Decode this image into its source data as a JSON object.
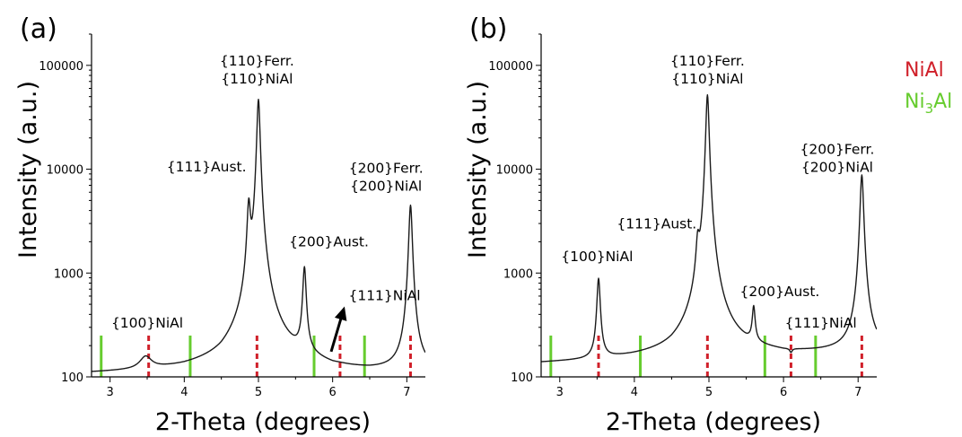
{
  "colors": {
    "nial": "#d0202a",
    "ni3al": "#66cc2e",
    "trace": "#1a1a1a"
  },
  "legend": [
    {
      "key": "nial",
      "label": "NiAl"
    },
    {
      "key": "ni3al",
      "label": "Ni3Al",
      "base": "Ni",
      "sub": "3",
      "tail": "Al"
    }
  ],
  "chart_data": [
    {
      "panel": "(a)",
      "type": "line",
      "xlabel": "2-Theta (degrees)",
      "ylabel": "Intensity (a.u.)",
      "xlim": [
        2.75,
        7.25
      ],
      "ylim": [
        100,
        200000
      ],
      "yscale": "log",
      "xticks": [
        3,
        4,
        5,
        6,
        7
      ],
      "xtick_labels": [
        "3",
        "4",
        "5",
        "6",
        "7"
      ],
      "yticks": [
        100,
        1000,
        10000,
        100000
      ],
      "ytick_labels": [
        "100",
        "1000",
        "10000",
        "100000"
      ],
      "baseline": [
        [
          2.75,
          108
        ],
        [
          3.3,
          111
        ],
        [
          4.0,
          118
        ],
        [
          4.5,
          130
        ],
        [
          4.8,
          160
        ],
        [
          5.1,
          175
        ],
        [
          5.5,
          140
        ],
        [
          6.0,
          118
        ],
        [
          6.5,
          113
        ],
        [
          7.25,
          115
        ]
      ],
      "peaks": [
        {
          "x": 3.48,
          "height": 150,
          "width": 0.09
        },
        {
          "x": 4.87,
          "height": 4200,
          "width": 0.022
        },
        {
          "x": 5.0,
          "height": 47000,
          "width": 0.02
        },
        {
          "x": 5.62,
          "height": 1100,
          "width": 0.022
        },
        {
          "x": 6.1,
          "height": 118,
          "width": 0.08
        },
        {
          "x": 7.05,
          "height": 4500,
          "width": 0.022
        }
      ],
      "reference_lines": {
        "nial": [
          3.52,
          4.98,
          6.1,
          7.05
        ],
        "ni3al": [
          2.88,
          4.08,
          5.75,
          6.43
        ]
      },
      "annotations": [
        {
          "lines": [
            "{110}Ferr.",
            "{110}NiAl"
          ],
          "x": 4.98,
          "y": 100000
        },
        {
          "lines": [
            "{111}Aust."
          ],
          "x": 4.3,
          "y": 9500
        },
        {
          "lines": [
            "{200}Aust."
          ],
          "x": 5.95,
          "y": 1800
        },
        {
          "lines": [
            "{200}Ferr.",
            "{200}NiAl"
          ],
          "x": 6.72,
          "y": 9200
        },
        {
          "lines": [
            "{111}NiAl"
          ],
          "x": 6.7,
          "y": 550
        },
        {
          "lines": [
            "{100}NiAl"
          ],
          "x": 3.5,
          "y": 300
        }
      ],
      "arrow": {
        "from": [
          5.98,
          175
        ],
        "to": [
          6.15,
          450
        ]
      }
    },
    {
      "panel": "(b)",
      "type": "line",
      "xlabel": "2-Theta (degrees)",
      "ylabel": "Intensity (a.u.)",
      "xlim": [
        2.75,
        7.25
      ],
      "ylim": [
        100,
        200000
      ],
      "yscale": "log",
      "xticks": [
        3,
        4,
        5,
        6,
        7
      ],
      "xtick_labels": [
        "3",
        "4",
        "5",
        "6",
        "7"
      ],
      "yticks": [
        100,
        1000,
        10000,
        100000
      ],
      "ytick_labels": [
        "100",
        "1000",
        "10000",
        "100000"
      ],
      "baseline": [
        [
          2.75,
          135
        ],
        [
          3.3,
          140
        ],
        [
          4.0,
          150
        ],
        [
          4.5,
          160
        ],
        [
          4.8,
          185
        ],
        [
          5.1,
          200
        ],
        [
          5.5,
          175
        ],
        [
          6.0,
          165
        ],
        [
          6.5,
          170
        ],
        [
          7.25,
          180
        ]
      ],
      "peaks": [
        {
          "x": 3.52,
          "height": 880,
          "width": 0.022
        },
        {
          "x": 4.85,
          "height": 1400,
          "width": 0.022
        },
        {
          "x": 4.98,
          "height": 52000,
          "width": 0.02
        },
        {
          "x": 5.6,
          "height": 430,
          "width": 0.02
        },
        {
          "x": 6.1,
          "height": 150,
          "width": 0.02
        },
        {
          "x": 7.05,
          "height": 8800,
          "width": 0.022
        }
      ],
      "reference_lines": {
        "nial": [
          3.52,
          4.98,
          6.1,
          7.05
        ],
        "ni3al": [
          2.88,
          4.08,
          5.75,
          6.43
        ]
      },
      "annotations": [
        {
          "lines": [
            "{110}Ferr.",
            "{110}NiAl"
          ],
          "x": 4.98,
          "y": 100000
        },
        {
          "lines": [
            "{200}Ferr.",
            "{200}NiAl"
          ],
          "x": 6.72,
          "y": 14000
        },
        {
          "lines": [
            "{111}Aust."
          ],
          "x": 4.3,
          "y": 2700
        },
        {
          "lines": [
            "{100}NiAl"
          ],
          "x": 3.5,
          "y": 1300
        },
        {
          "lines": [
            "{200}Aust."
          ],
          "x": 5.95,
          "y": 600
        },
        {
          "lines": [
            "{111}NiAl"
          ],
          "x": 6.5,
          "y": 300
        }
      ],
      "arrow": null
    }
  ]
}
